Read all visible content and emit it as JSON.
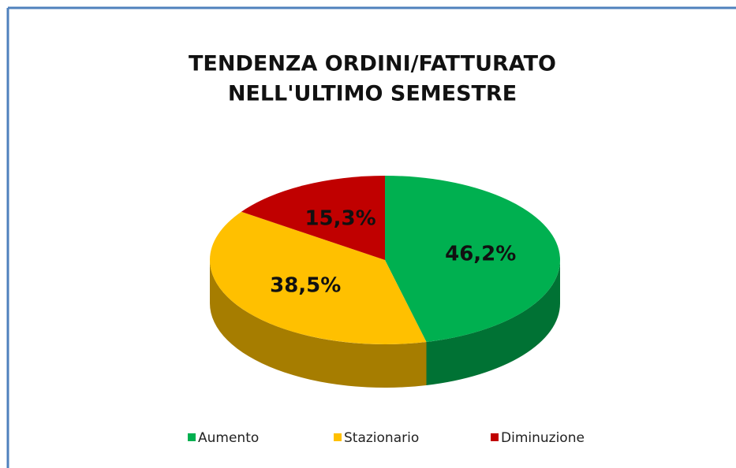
{
  "chart_data": {
    "type": "pie",
    "title": [
      "TENDENZA ORDINI/FATTURATO",
      "NELL'ULTIMO SEMESTRE"
    ],
    "categories": [
      "Aumento",
      "Stazionario",
      "Diminuzione"
    ],
    "values": [
      46.2,
      38.5,
      15.3
    ],
    "value_labels": [
      "46,2%",
      "38,5%",
      "15,3%"
    ],
    "colors": [
      "#00b050",
      "#ffc000",
      "#c00000"
    ],
    "legend": "bottom"
  }
}
